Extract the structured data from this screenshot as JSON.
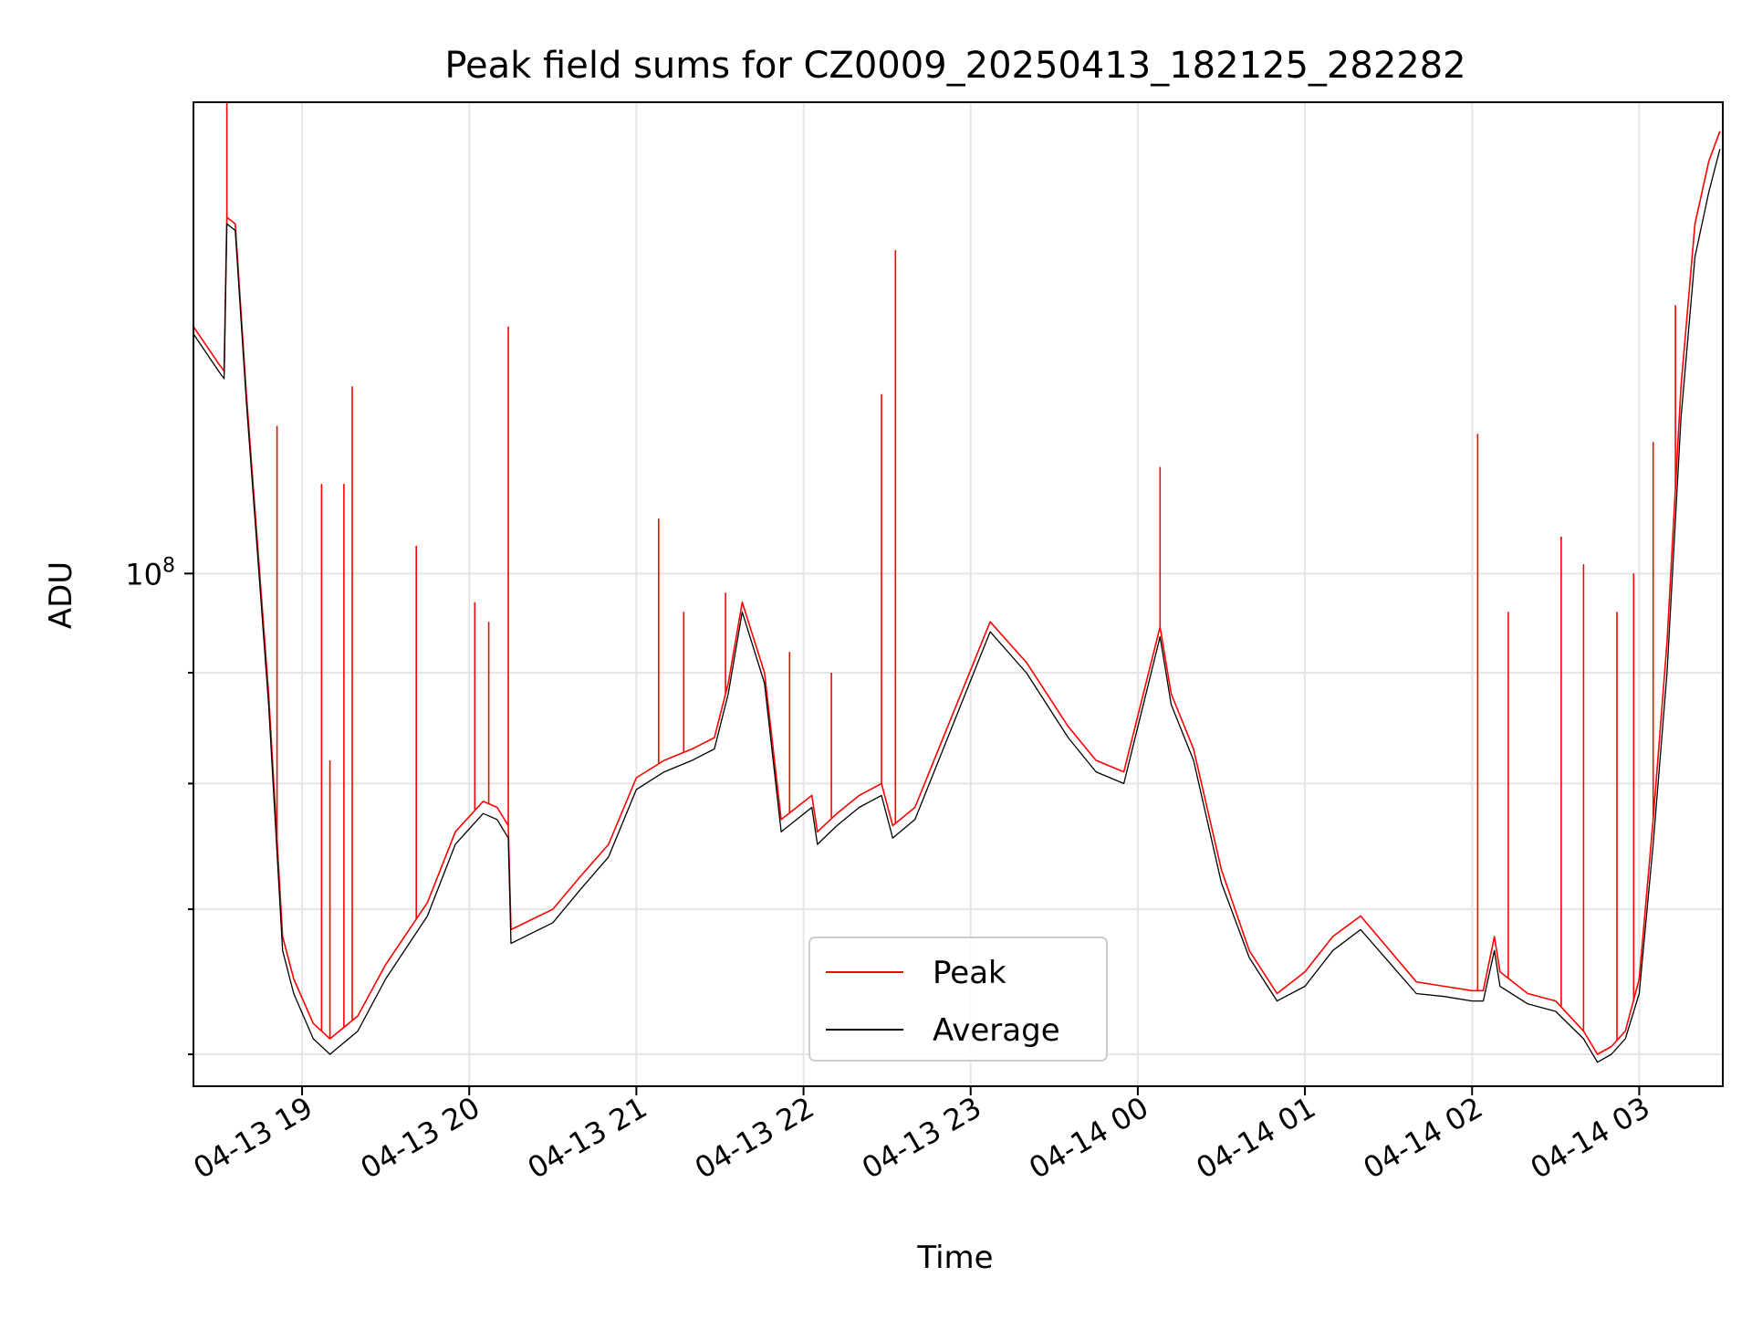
{
  "chart_data": {
    "type": "line",
    "title": "Peak field sums for CZ0009_20250413_182125_282282",
    "xlabel": "Time",
    "ylabel": "ADU",
    "yscale": "log",
    "grid": true,
    "legend_position": "lower center",
    "xlim": [
      "2025-04-13 18:21",
      "2025-04-14 03:30"
    ],
    "ylim": [
      58000000,
      165000000
    ],
    "x_ticks": [
      {
        "value": "2025-04-13 19:00",
        "label": "04-13 19"
      },
      {
        "value": "2025-04-13 20:00",
        "label": "04-13 20"
      },
      {
        "value": "2025-04-13 21:00",
        "label": "04-13 21"
      },
      {
        "value": "2025-04-13 22:00",
        "label": "04-13 22"
      },
      {
        "value": "2025-04-13 23:00",
        "label": "04-13 23"
      },
      {
        "value": "2025-04-14 00:00",
        "label": "04-14 00"
      },
      {
        "value": "2025-04-14 01:00",
        "label": "04-14 01"
      },
      {
        "value": "2025-04-14 02:00",
        "label": "04-14 02"
      },
      {
        "value": "2025-04-14 03:00",
        "label": "04-14 03"
      }
    ],
    "y_major_ticks": [
      {
        "value": 100000000,
        "base": "10",
        "exp": "8"
      }
    ],
    "y_minor_ticks": [
      60000000,
      70000000,
      80000000,
      90000000
    ],
    "series_colors": {
      "Peak": "#ff0000",
      "Average": "#000000"
    },
    "series": [
      {
        "name": "Average",
        "x": [
          "2025-04-13 18:21",
          "2025-04-13 18:30",
          "2025-04-13 18:32",
          "2025-04-13 18:33",
          "2025-04-13 18:36",
          "2025-04-13 18:40",
          "2025-04-13 18:48",
          "2025-04-13 18:53",
          "2025-04-13 18:57",
          "2025-04-13 19:04",
          "2025-04-13 19:10",
          "2025-04-13 19:20",
          "2025-04-13 19:30",
          "2025-04-13 19:45",
          "2025-04-13 19:55",
          "2025-04-13 20:05",
          "2025-04-13 20:10",
          "2025-04-13 20:14",
          "2025-04-13 20:15",
          "2025-04-13 20:30",
          "2025-04-13 20:40",
          "2025-04-13 20:50",
          "2025-04-13 21:00",
          "2025-04-13 21:10",
          "2025-04-13 21:20",
          "2025-04-13 21:28",
          "2025-04-13 21:33",
          "2025-04-13 21:38",
          "2025-04-13 21:46",
          "2025-04-13 21:52",
          "2025-04-13 22:03",
          "2025-04-13 22:05",
          "2025-04-13 22:12",
          "2025-04-13 22:20",
          "2025-04-13 22:28",
          "2025-04-13 22:32",
          "2025-04-13 22:40",
          "2025-04-13 23:07",
          "2025-04-13 23:20",
          "2025-04-13 23:35",
          "2025-04-13 23:45",
          "2025-04-13 23:55",
          "2025-04-14 00:08",
          "2025-04-14 00:12",
          "2025-04-14 00:20",
          "2025-04-14 00:30",
          "2025-04-14 00:40",
          "2025-04-14 00:50",
          "2025-04-14 01:00",
          "2025-04-14 01:10",
          "2025-04-14 01:20",
          "2025-04-14 01:40",
          "2025-04-14 01:50",
          "2025-04-14 02:00",
          "2025-04-14 02:04",
          "2025-04-14 02:08",
          "2025-04-14 02:10",
          "2025-04-14 02:20",
          "2025-04-14 02:30",
          "2025-04-14 02:40",
          "2025-04-14 02:45",
          "2025-04-14 02:50",
          "2025-04-14 02:55",
          "2025-04-14 03:00",
          "2025-04-14 03:05",
          "2025-04-14 03:10",
          "2025-04-14 03:15",
          "2025-04-14 03:20",
          "2025-04-14 03:25",
          "2025-04-14 03:29"
        ],
        "values": [
          129000000,
          124000000,
          123000000,
          145000000,
          144000000,
          120000000,
          87000000,
          67000000,
          64000000,
          61000000,
          60000000,
          61500000,
          65000000,
          69500000,
          75000000,
          77500000,
          77000000,
          75500000,
          67500000,
          69000000,
          71500000,
          74000000,
          79500000,
          81000000,
          82000000,
          83000000,
          88000000,
          96000000,
          89000000,
          76000000,
          78000000,
          75000000,
          76500000,
          78000000,
          79000000,
          75500000,
          77000000,
          94000000,
          90000000,
          84000000,
          81000000,
          80000000,
          93500000,
          87000000,
          82000000,
          72000000,
          66500000,
          63500000,
          64500000,
          67000000,
          68500000,
          64000000,
          63800000,
          63500000,
          63500000,
          67000000,
          64500000,
          63300000,
          62800000,
          61000000,
          59500000,
          60000000,
          61000000,
          64000000,
          75000000,
          90000000,
          118000000,
          140000000,
          150000000,
          157000000
        ]
      },
      {
        "name": "Peak",
        "x": [
          "2025-04-13 18:21",
          "2025-04-13 18:30",
          "2025-04-13 18:32",
          "2025-04-13 18:33",
          "2025-04-13 18:36",
          "2025-04-13 18:40",
          "2025-04-13 18:48",
          "2025-04-13 18:53",
          "2025-04-13 18:57",
          "2025-04-13 19:04",
          "2025-04-13 19:10",
          "2025-04-13 19:20",
          "2025-04-13 19:30",
          "2025-04-13 19:45",
          "2025-04-13 19:55",
          "2025-04-13 20:05",
          "2025-04-13 20:10",
          "2025-04-13 20:14",
          "2025-04-13 20:15",
          "2025-04-13 20:30",
          "2025-04-13 20:40",
          "2025-04-13 20:50",
          "2025-04-13 21:00",
          "2025-04-13 21:10",
          "2025-04-13 21:20",
          "2025-04-13 21:28",
          "2025-04-13 21:33",
          "2025-04-13 21:38",
          "2025-04-13 21:46",
          "2025-04-13 21:52",
          "2025-04-13 22:03",
          "2025-04-13 22:05",
          "2025-04-13 22:12",
          "2025-04-13 22:20",
          "2025-04-13 22:28",
          "2025-04-13 22:32",
          "2025-04-13 22:40",
          "2025-04-13 23:07",
          "2025-04-13 23:20",
          "2025-04-13 23:35",
          "2025-04-13 23:45",
          "2025-04-13 23:55",
          "2025-04-14 00:08",
          "2025-04-14 00:12",
          "2025-04-14 00:20",
          "2025-04-14 00:30",
          "2025-04-14 00:40",
          "2025-04-14 00:50",
          "2025-04-14 01:00",
          "2025-04-14 01:10",
          "2025-04-14 01:20",
          "2025-04-14 01:40",
          "2025-04-14 01:50",
          "2025-04-14 02:00",
          "2025-04-14 02:04",
          "2025-04-14 02:08",
          "2025-04-14 02:10",
          "2025-04-14 02:20",
          "2025-04-14 02:30",
          "2025-04-14 02:40",
          "2025-04-14 02:45",
          "2025-04-14 02:50",
          "2025-04-14 02:55",
          "2025-04-14 03:00",
          "2025-04-14 03:05",
          "2025-04-14 03:10",
          "2025-04-14 03:15",
          "2025-04-14 03:20",
          "2025-04-14 03:25",
          "2025-04-14 03:29"
        ],
        "values": [
          130000000,
          125000000,
          124000000,
          146000000,
          145000000,
          121000000,
          88000000,
          68000000,
          65000000,
          62000000,
          61000000,
          62500000,
          66000000,
          70500000,
          76000000,
          78500000,
          78000000,
          76500000,
          68500000,
          70000000,
          72500000,
          75000000,
          80500000,
          82000000,
          83000000,
          84000000,
          89000000,
          97000000,
          90000000,
          77000000,
          79000000,
          76000000,
          77500000,
          79000000,
          80000000,
          76500000,
          78000000,
          95000000,
          91000000,
          85000000,
          82000000,
          81000000,
          94500000,
          88000000,
          83000000,
          73000000,
          67000000,
          64000000,
          65500000,
          68000000,
          69500000,
          64800000,
          64500000,
          64200000,
          64200000,
          68000000,
          65500000,
          64000000,
          63500000,
          61500000,
          60000000,
          60500000,
          61500000,
          65000000,
          77000000,
          93000000,
          122000000,
          145000000,
          155000000,
          160000000
        ]
      }
    ],
    "peak_spikes": [
      {
        "x": "2025-04-13 18:33",
        "y": 165000000
      },
      {
        "x": "2025-04-13 18:51",
        "y": 117000000
      },
      {
        "x": "2025-04-13 19:07",
        "y": 110000000
      },
      {
        "x": "2025-04-13 19:10",
        "y": 82000000
      },
      {
        "x": "2025-04-13 19:15",
        "y": 110000000
      },
      {
        "x": "2025-04-13 19:18",
        "y": 122000000
      },
      {
        "x": "2025-04-13 19:41",
        "y": 103000000
      },
      {
        "x": "2025-04-13 20:02",
        "y": 97000000
      },
      {
        "x": "2025-04-13 20:07",
        "y": 95000000
      },
      {
        "x": "2025-04-13 20:14",
        "y": 130000000
      },
      {
        "x": "2025-04-13 21:08",
        "y": 106000000
      },
      {
        "x": "2025-04-13 21:17",
        "y": 96000000
      },
      {
        "x": "2025-04-13 21:32",
        "y": 98000000
      },
      {
        "x": "2025-04-13 21:55",
        "y": 92000000
      },
      {
        "x": "2025-04-13 22:10",
        "y": 90000000
      },
      {
        "x": "2025-04-13 22:28",
        "y": 121000000
      },
      {
        "x": "2025-04-13 22:33",
        "y": 141000000
      },
      {
        "x": "2025-04-14 00:08",
        "y": 112000000
      },
      {
        "x": "2025-04-14 02:02",
        "y": 116000000
      },
      {
        "x": "2025-04-14 02:13",
        "y": 96000000
      },
      {
        "x": "2025-04-14 02:32",
        "y": 104000000
      },
      {
        "x": "2025-04-14 02:40",
        "y": 101000000
      },
      {
        "x": "2025-04-14 02:52",
        "y": 96000000
      },
      {
        "x": "2025-04-14 02:58",
        "y": 100000000
      },
      {
        "x": "2025-04-14 03:05",
        "y": 115000000
      },
      {
        "x": "2025-04-14 03:13",
        "y": 133000000
      }
    ],
    "legend": [
      {
        "label": "Peak",
        "color": "#ff0000"
      },
      {
        "label": "Average",
        "color": "#000000"
      }
    ]
  }
}
